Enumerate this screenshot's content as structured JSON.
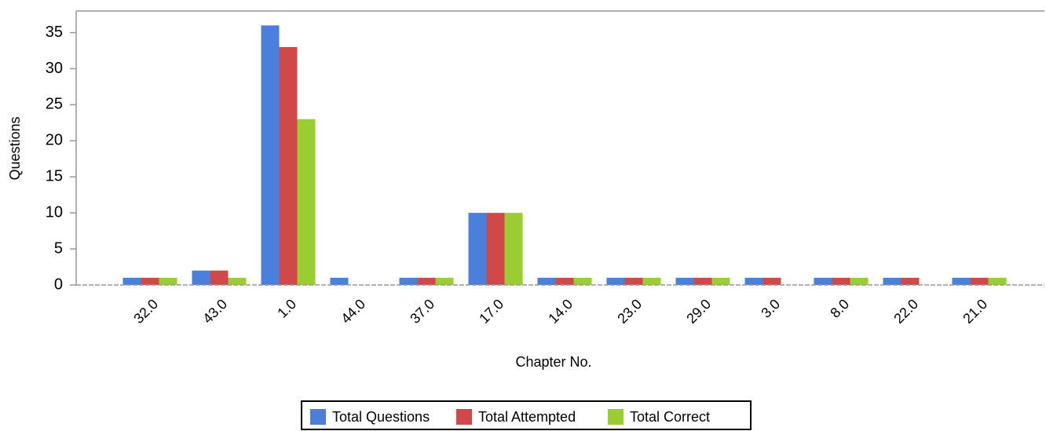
{
  "chart_data": {
    "type": "bar",
    "x_label": "Chapter No.",
    "y_label": "Questions",
    "categories": [
      "32.0",
      "43.0",
      "1.0",
      "44.0",
      "37.0",
      "17.0",
      "14.0",
      "23.0",
      "29.0",
      "3.0",
      "8.0",
      "22.0",
      "21.0"
    ],
    "series": [
      {
        "name": "Total Questions",
        "color": "#4a7fdb",
        "values": [
          1,
          2,
          36,
          1,
          1,
          10,
          1,
          1,
          1,
          1,
          1,
          1,
          1
        ]
      },
      {
        "name": "Total Attempted",
        "color": "#d04848",
        "values": [
          1,
          2,
          33,
          0,
          1,
          10,
          1,
          1,
          1,
          1,
          1,
          1,
          1
        ]
      },
      {
        "name": "Total Correct",
        "color": "#9acd32",
        "values": [
          1,
          1,
          23,
          0,
          1,
          10,
          1,
          1,
          1,
          0,
          1,
          0,
          1
        ]
      }
    ],
    "ylim": [
      0,
      38
    ],
    "yticks": [
      0,
      5,
      10,
      15,
      20,
      25,
      30,
      35
    ],
    "legend": "bottom"
  }
}
